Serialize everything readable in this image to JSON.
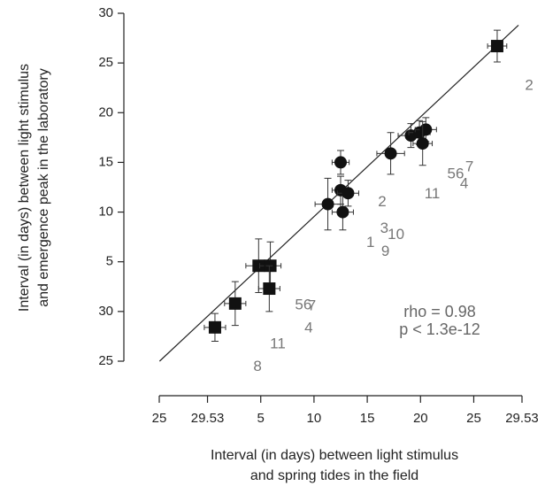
{
  "chart_data": {
    "type": "scatter",
    "xlabel": [
      "Interval (in days) between light stimulus",
      "and spring tides in the field"
    ],
    "ylabel": [
      "Interval (in days) between light stimulus",
      "and emergence peak in the laboratory"
    ],
    "xlim": [
      -4.53,
      29.53
    ],
    "ylim": [
      -5,
      30
    ],
    "xticks": [
      {
        "value": -4.53,
        "label": "25"
      },
      {
        "value": 0,
        "label": "29.53"
      },
      5,
      10,
      15,
      20,
      25,
      29.53
    ],
    "yticks": [
      {
        "value": -5,
        "label": "25"
      },
      {
        "value": 0,
        "label": "30"
      },
      5,
      10,
      15,
      20,
      25,
      30
    ],
    "series": [
      {
        "name": "squares",
        "marker": "square",
        "color": "#111111",
        "x": [
          27.2,
          4.8,
          5.9,
          5.8,
          2.6,
          0.7
        ],
        "y": [
          26.7,
          4.6,
          4.6,
          2.3,
          0.8,
          -1.6
        ],
        "xerr": [
          0.9,
          1.2,
          1.0,
          1.0,
          1.0,
          1.0
        ],
        "yerr": [
          1.6,
          2.7,
          2.4,
          2.3,
          2.2,
          1.4
        ]
      },
      {
        "name": "circles",
        "marker": "circle",
        "color": "#111111",
        "x": [
          11.3,
          12.7,
          12.5,
          13.2,
          12.5,
          17.2,
          19.1,
          19.9,
          20.5,
          20.2
        ],
        "y": [
          10.8,
          10.0,
          12.2,
          11.9,
          15.0,
          15.9,
          17.7,
          18.0,
          18.3,
          16.9
        ],
        "xerr": [
          1.2,
          1.0,
          0.8,
          1.0,
          0.8,
          1.3,
          1.2,
          1.0,
          1.0,
          0.9
        ],
        "yerr": [
          2.6,
          1.8,
          1.4,
          1.3,
          1.2,
          2.1,
          1.2,
          1.2,
          1.2,
          2.2
        ]
      }
    ],
    "text_points": {
      "color": "#777777",
      "labels": [
        "2",
        "56",
        "7",
        "4",
        "11",
        "2",
        "3",
        "10",
        "1",
        "9",
        "56",
        "7",
        "4",
        "11",
        "8"
      ],
      "x": [
        30.2,
        23.3,
        24.6,
        24.1,
        21.1,
        16.4,
        16.6,
        17.7,
        15.3,
        16.7,
        9.0,
        9.8,
        9.5,
        6.6,
        4.7
      ],
      "y": [
        22.7,
        13.8,
        14.5,
        12.8,
        11.8,
        11.0,
        8.3,
        7.7,
        6.9,
        6.0,
        0.6,
        0.5,
        -1.7,
        -3.3,
        -5.6
      ]
    },
    "fit_line": {
      "x": [
        -4.5,
        29.2
      ],
      "y": [
        -5,
        28.8
      ]
    },
    "annotations": [
      "rho = 0.98",
      "p < 1.3e-12"
    ]
  }
}
